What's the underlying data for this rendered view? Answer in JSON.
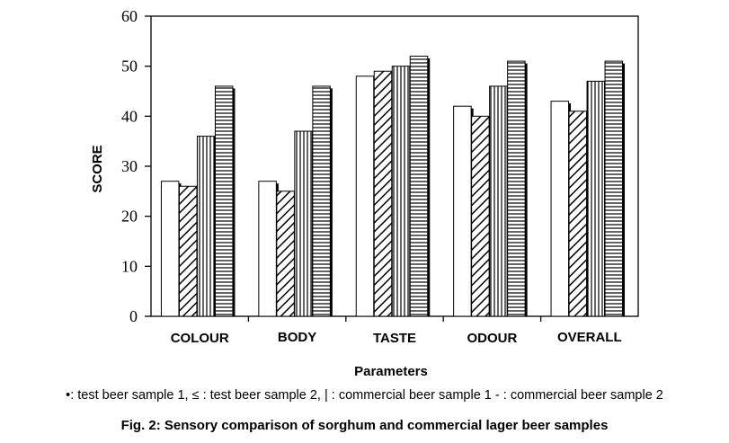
{
  "chart_data": {
    "type": "bar",
    "title": "",
    "xlabel": "Parameters",
    "ylabel": "SCORE",
    "ylim": [
      0,
      60
    ],
    "yticks": [
      "0",
      "10",
      "20",
      "30",
      "40",
      "50",
      "60"
    ],
    "categories": [
      "COLOUR",
      "BODY",
      "TASTE",
      "ODOUR",
      "OVERALL"
    ],
    "series": [
      {
        "pattern": "blank",
        "values": [
          27,
          27,
          48,
          42,
          43
        ]
      },
      {
        "pattern": "diagonal",
        "values": [
          26,
          25,
          49,
          40,
          41
        ]
      },
      {
        "pattern": "vertical",
        "values": [
          36,
          37,
          50,
          46,
          47
        ]
      },
      {
        "pattern": "horizontal",
        "values": [
          46,
          46,
          52,
          51,
          51
        ]
      }
    ],
    "grid": false,
    "legend_text": "•: test beer sample 1,  ≤  :  test beer sample 2, |  :  commercial beer sample 1 - :  commercial beer sample 2",
    "caption": "Fig. 2: Sensory comparison of sorghum and commercial lager beer samples",
    "colors": {
      "bar_fill": "#ffffff",
      "ink": "#000000"
    }
  }
}
